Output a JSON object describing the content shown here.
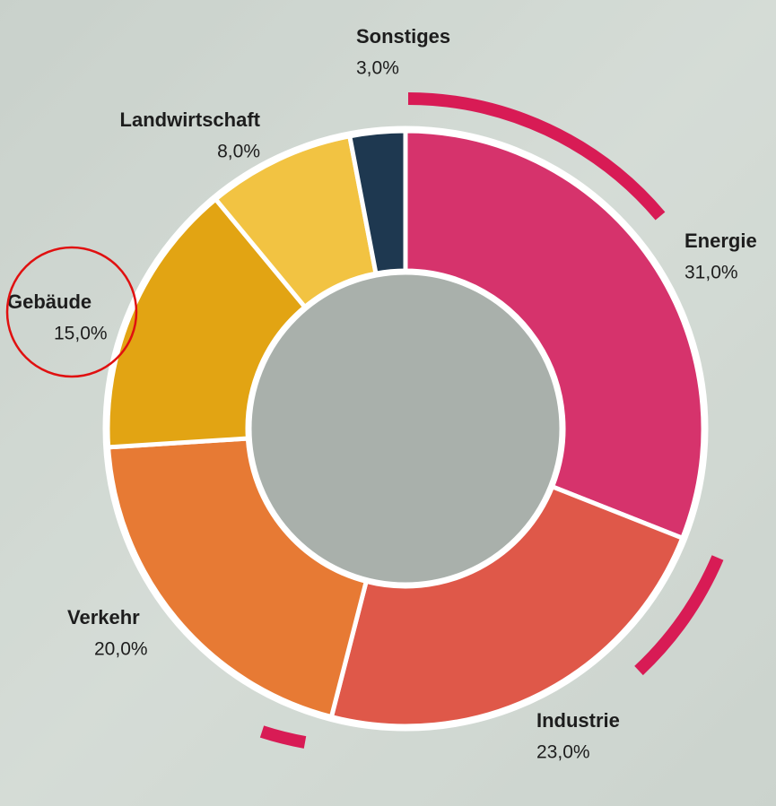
{
  "chart_data": {
    "type": "donut",
    "categories": [
      "Energie",
      "Industrie",
      "Verkehr",
      "Gebäude",
      "Landwirtschaft",
      "Sonstiges"
    ],
    "values": [
      31,
      23,
      20,
      15,
      8,
      3
    ],
    "value_labels": [
      "31,0%",
      "23,0%",
      "20,0%",
      "15,0%",
      "8,0%",
      "3,0%"
    ],
    "colors": [
      "#d6336c",
      "#df5849",
      "#e77a34",
      "#e2a413",
      "#f2c342",
      "#1e3850"
    ]
  }
}
